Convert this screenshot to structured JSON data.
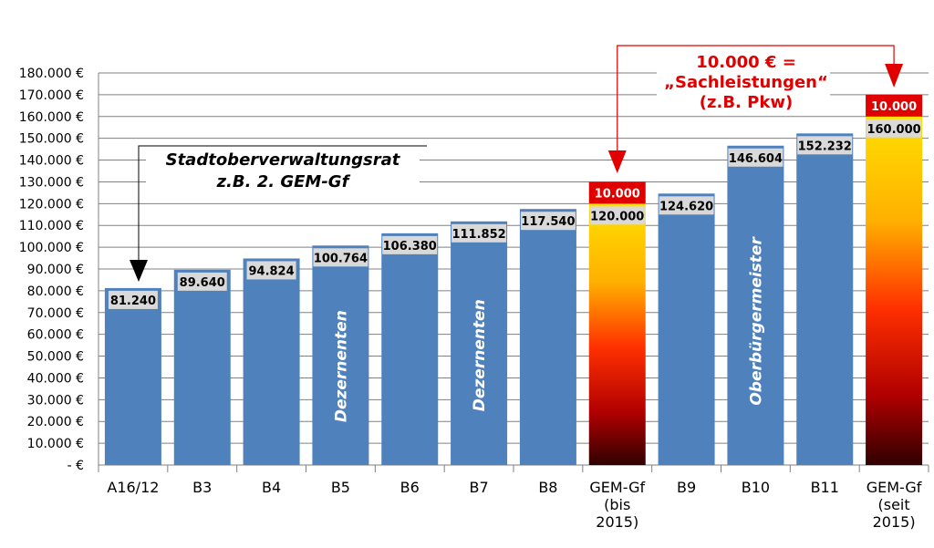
{
  "chart_data": {
    "type": "bar",
    "title": "",
    "xlabel": "",
    "ylabel": "",
    "ylim": [
      0,
      180000
    ],
    "ytick_step": 10000,
    "ytick_labels": [
      "-  €",
      "10.000 €",
      "20.000 €",
      "30.000 €",
      "40.000 €",
      "50.000 €",
      "60.000 €",
      "70.000 €",
      "80.000 €",
      "90.000 €",
      "100.000 €",
      "110.000 €",
      "120.000 €",
      "130.000 €",
      "140.000 €",
      "150.000 €",
      "160.000 €",
      "170.000 €",
      "180.000 €"
    ],
    "grid": true,
    "bars": [
      {
        "category": [
          "A16/12"
        ],
        "value": 81240,
        "label": "81.240",
        "style": "blue"
      },
      {
        "category": [
          "B3"
        ],
        "value": 89640,
        "label": "89.640",
        "style": "blue"
      },
      {
        "category": [
          "B4"
        ],
        "value": 94824,
        "label": "94.824",
        "style": "blue"
      },
      {
        "category": [
          "B5"
        ],
        "value": 100764,
        "label": "100.764",
        "style": "blue",
        "inner_text": "Dezernenten"
      },
      {
        "category": [
          "B6"
        ],
        "value": 106380,
        "label": "106.380",
        "style": "blue"
      },
      {
        "category": [
          "B7"
        ],
        "value": 111852,
        "label": "111.852",
        "style": "blue",
        "inner_text": "Dezernenten"
      },
      {
        "category": [
          "B8"
        ],
        "value": 117540,
        "label": "117.540",
        "style": "blue"
      },
      {
        "category": [
          "GEM-Gf",
          "(bis",
          "2015)"
        ],
        "value": 120000,
        "label": "120.000",
        "style": "gradient",
        "extra_value": 10000,
        "extra_label": "10.000"
      },
      {
        "category": [
          "B9"
        ],
        "value": 124620,
        "label": "124.620",
        "style": "blue"
      },
      {
        "category": [
          "B10"
        ],
        "value": 146604,
        "label": "146.604",
        "style": "blue",
        "inner_text": "Oberbürgermeister"
      },
      {
        "category": [
          "B11"
        ],
        "value": 152232,
        "label": "152.232",
        "style": "blue"
      },
      {
        "category": [
          "GEM-Gf",
          "(seit",
          "2015)"
        ],
        "value": 160000,
        "label": "160.000",
        "style": "gradient",
        "extra_value": 10000,
        "extra_label": "10.000"
      }
    ],
    "annotations": {
      "black": [
        "Stadtoberverwaltungsrat",
        "z.B. 2. GEM-Gf"
      ],
      "red": [
        "10.000 € =",
        "„Sachleistungen“",
        "(z.B. Pkw)"
      ]
    },
    "colors": {
      "bar_blue": "#4f81bd",
      "extra_red": "#e00000",
      "label_bg": "#d9d9d9",
      "annotation_red": "#e10000",
      "grid": "#808080"
    }
  }
}
